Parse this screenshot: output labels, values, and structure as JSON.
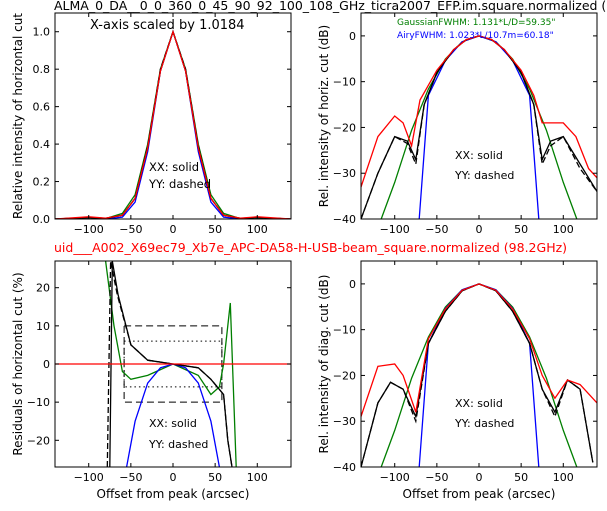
{
  "figure": {
    "title_top": "ALMA_0_DA__0_0_360_0_45_90_92_100_108_GHz_ticra2007_EFP.im.square.normalized (",
    "title_middle": "uid___A002_X69ec79_Xb7e_APC-DA58-H-USB-beam_square.normalized (98.2GHz)",
    "title_middle_color": "#ff0000"
  },
  "chart_data": [
    {
      "type": "line",
      "panel": "top-left",
      "xlabel": "",
      "ylabel": "Relative intensity of horizontal cut",
      "xlim": [
        -140,
        140
      ],
      "ylim": [
        0,
        1.1
      ],
      "xticks": [
        -100,
        -50,
        0,
        50,
        100
      ],
      "yticks": [
        0.0,
        0.2,
        0.4,
        0.6,
        0.8,
        1.0
      ],
      "annotations": [
        "X-axis scaled by 1.0184",
        "XX: solid",
        "YY: dashed"
      ],
      "series": [
        {
          "style": "model gaussian",
          "color": "#007f00",
          "x": [
            -140,
            -80,
            -60,
            -45,
            -30,
            -15,
            0,
            15,
            30,
            45,
            60,
            80,
            140
          ],
          "y": [
            0,
            0.002,
            0.03,
            0.13,
            0.4,
            0.8,
            1.0,
            0.8,
            0.4,
            0.13,
            0.03,
            0.002,
            0
          ]
        },
        {
          "style": "model airy",
          "color": "#0000ff",
          "x": [
            -140,
            -80,
            -60,
            -45,
            -30,
            -15,
            0,
            15,
            30,
            45,
            60,
            80,
            140
          ],
          "y": [
            0,
            0,
            0.01,
            0.09,
            0.36,
            0.79,
            1.0,
            0.79,
            0.36,
            0.09,
            0.01,
            0,
            0
          ]
        },
        {
          "style": "XX solid",
          "color": "#000000",
          "x": [
            -140,
            -100,
            -80,
            -60,
            -45,
            -30,
            -15,
            0,
            15,
            30,
            45,
            60,
            80,
            100,
            140
          ],
          "y": [
            0,
            0.008,
            0.004,
            0.02,
            0.11,
            0.38,
            0.79,
            1.0,
            0.79,
            0.38,
            0.11,
            0.02,
            0.004,
            0.008,
            0
          ]
        },
        {
          "style": "YY dashed",
          "color": "#000000",
          "x": [
            -140,
            -100,
            -80,
            -60,
            -45,
            -30,
            -15,
            0,
            15,
            30,
            45,
            60,
            80,
            100,
            140
          ],
          "y": [
            0,
            0.008,
            0.004,
            0.02,
            0.11,
            0.39,
            0.8,
            1.0,
            0.8,
            0.39,
            0.11,
            0.02,
            0.004,
            0.008,
            0
          ]
        },
        {
          "style": "measured red",
          "color": "#ff0000",
          "x": [
            -140,
            -100,
            -80,
            -60,
            -45,
            -30,
            -15,
            0,
            15,
            30,
            45,
            60,
            80,
            100,
            140
          ],
          "y": [
            0,
            0.012,
            0.005,
            0.02,
            0.11,
            0.38,
            0.79,
            1.0,
            0.79,
            0.38,
            0.11,
            0.02,
            0.005,
            0.012,
            0
          ]
        }
      ]
    },
    {
      "type": "line",
      "panel": "top-right",
      "xlabel": "",
      "ylabel": "Rel. intensity of horiz. cut (dB)",
      "xlim": [
        -140,
        140
      ],
      "ylim": [
        -40,
        5
      ],
      "xticks": [
        -100,
        -50,
        0,
        50,
        100
      ],
      "yticks": [
        0,
        -10,
        -20,
        -30,
        -40
      ],
      "annotations": [
        "XX: solid",
        "YY: dashed"
      ],
      "legend": [
        {
          "text": "GaussianFWHM: 1.131*L/D=59.35\"",
          "color": "#007f00"
        },
        {
          "text": "AiryFWHM: 1.023*L/10.7m=60.18\"",
          "color": "#0000ff"
        }
      ],
      "series": [
        {
          "style": "model gaussian",
          "color": "#007f00",
          "x": [
            -116,
            -100,
            -80,
            -60,
            -40,
            -20,
            0,
            20,
            40,
            60,
            80,
            100,
            116
          ],
          "y": [
            -40,
            -32,
            -20.6,
            -11.6,
            -5.1,
            -1.3,
            0,
            -1.3,
            -5.1,
            -11.6,
            -20.6,
            -32,
            -40
          ]
        },
        {
          "style": "model airy",
          "color": "#0000ff",
          "x": [
            -71,
            -60,
            -40,
            -20,
            0,
            20,
            40,
            60,
            71
          ],
          "y": [
            -40,
            -13,
            -5.4,
            -1.3,
            0,
            -1.3,
            -5.4,
            -13,
            -40
          ]
        },
        {
          "style": "XX solid",
          "color": "#000000",
          "x": [
            -140,
            -120,
            -100,
            -85,
            -75,
            -65,
            -50,
            -30,
            -15,
            0,
            15,
            30,
            50,
            65,
            75,
            85,
            100,
            120,
            140
          ],
          "y": [
            -40,
            -30,
            -22,
            -23,
            -27,
            -15,
            -8,
            -3,
            -0.8,
            0,
            -0.8,
            -3,
            -8,
            -15,
            -27,
            -23,
            -22,
            -28,
            -34
          ]
        },
        {
          "style": "YY dashed",
          "color": "#000000",
          "x": [
            -140,
            -120,
            -100,
            -85,
            -75,
            -65,
            -50,
            -30,
            -15,
            0,
            15,
            30,
            50,
            65,
            75,
            85,
            100,
            120,
            140
          ],
          "y": [
            -40,
            -30,
            -22,
            -23.5,
            -28,
            -15,
            -8,
            -3,
            -0.8,
            0,
            -0.8,
            -3,
            -8,
            -15,
            -28,
            -24,
            -22,
            -29,
            -34
          ]
        },
        {
          "style": "measured red",
          "color": "#ff0000",
          "x": [
            -140,
            -120,
            -100,
            -90,
            -80,
            -70,
            -50,
            -30,
            -15,
            0,
            15,
            30,
            50,
            65,
            75,
            85,
            100,
            115,
            130,
            140
          ],
          "y": [
            -33,
            -22,
            -17.5,
            -19,
            -24,
            -14,
            -7.5,
            -3,
            -0.8,
            0,
            -0.8,
            -3,
            -7.5,
            -13,
            -19,
            -19,
            -19,
            -22,
            -29,
            -31
          ]
        }
      ]
    },
    {
      "type": "line",
      "panel": "bottom-left",
      "xlabel": "Offset from peak (arcsec)",
      "ylabel": "Residuals of horizontal cut (%)",
      "xlim": [
        -140,
        140
      ],
      "ylim": [
        -27,
        27
      ],
      "xticks": [
        -100,
        -50,
        0,
        50,
        100
      ],
      "yticks": [
        20,
        10,
        0,
        -10,
        -20
      ],
      "annotations": [
        "XX: solid",
        "YY: dashed"
      ],
      "reference_lines": {
        "dashed_box": [
          -58,
          58,
          -10,
          10
        ],
        "dotted_box": [
          -58,
          58,
          -6,
          6
        ]
      },
      "series": [
        {
          "style": "gaussian residual",
          "color": "#007f00",
          "x": [
            -80,
            -70,
            -60,
            -50,
            -30,
            0,
            30,
            45,
            55,
            60,
            68,
            75
          ],
          "y": [
            27,
            10,
            -2,
            -4,
            -3,
            0,
            -3,
            -8,
            -6,
            0,
            16,
            -27
          ]
        },
        {
          "style": "airy residual",
          "color": "#0000ff",
          "x": [
            -55,
            -45,
            -30,
            -15,
            0,
            15,
            30,
            45,
            55
          ],
          "y": [
            -27,
            -15,
            -5,
            -1,
            0,
            -1,
            -5,
            -15,
            -27
          ]
        },
        {
          "style": "XX solid",
          "color": "#000000",
          "x": [
            -75,
            -72,
            -65,
            -50,
            -30,
            0,
            30,
            45,
            60,
            65,
            70
          ],
          "y": [
            -27,
            27,
            18,
            5,
            1,
            0,
            -1,
            -4,
            -8,
            -20,
            -27
          ]
        },
        {
          "style": "YY dashed",
          "color": "#000000",
          "x": [
            -78,
            -74,
            -66,
            -50,
            -30,
            0,
            30,
            45,
            60,
            65,
            70
          ],
          "y": [
            -27,
            27,
            18,
            5,
            1,
            0,
            -1,
            -4,
            -8,
            -20,
            -27
          ]
        },
        {
          "style": "zero",
          "color": "#ff0000",
          "x": [
            -140,
            140
          ],
          "y": [
            0,
            0
          ]
        }
      ]
    },
    {
      "type": "line",
      "panel": "bottom-right",
      "xlabel": "Offset from peak (arcsec)",
      "ylabel": "Rel. intensity of diag. cut (dB)",
      "xlim": [
        -140,
        140
      ],
      "ylim": [
        -40,
        5
      ],
      "xticks": [
        -100,
        -50,
        0,
        50,
        100
      ],
      "yticks": [
        0,
        -10,
        -20,
        -30,
        -40
      ],
      "annotations": [
        "XX: solid",
        "YY: dashed"
      ],
      "series": [
        {
          "style": "model gaussian",
          "color": "#007f00",
          "x": [
            -116,
            -100,
            -80,
            -60,
            -40,
            -20,
            0,
            20,
            40,
            60,
            80,
            100,
            116
          ],
          "y": [
            -40,
            -32,
            -20.6,
            -11.6,
            -5.1,
            -1.3,
            0,
            -1.3,
            -5.1,
            -11.6,
            -20.6,
            -32,
            -40
          ]
        },
        {
          "style": "model airy",
          "color": "#0000ff",
          "x": [
            -71,
            -60,
            -40,
            -20,
            0,
            20,
            40,
            60,
            71
          ],
          "y": [
            -40,
            -13,
            -5.4,
            -1.3,
            0,
            -1.3,
            -5.4,
            -13,
            -40
          ]
        },
        {
          "style": "XX solid",
          "color": "#000000",
          "x": [
            -140,
            -120,
            -105,
            -90,
            -75,
            -60,
            -40,
            -20,
            0,
            20,
            40,
            60,
            75,
            90,
            105,
            120,
            135
          ],
          "y": [
            -40,
            -26,
            -21.5,
            -23,
            -29,
            -13,
            -6,
            -1.5,
            0,
            -1.5,
            -6,
            -13,
            -23,
            -28,
            -21,
            -23,
            -39
          ]
        },
        {
          "style": "YY dashed",
          "color": "#000000",
          "x": [
            -140,
            -120,
            -105,
            -90,
            -75,
            -60,
            -40,
            -20,
            0,
            20,
            40,
            60,
            75,
            90,
            105,
            120,
            135
          ],
          "y": [
            -40,
            -26,
            -21.5,
            -23,
            -30,
            -13,
            -6,
            -1.5,
            0,
            -1.5,
            -6,
            -13,
            -23,
            -29,
            -21,
            -23,
            -39
          ]
        },
        {
          "style": "measured red",
          "color": "#ff0000",
          "x": [
            -140,
            -120,
            -100,
            -90,
            -75,
            -60,
            -40,
            -20,
            0,
            20,
            40,
            60,
            75,
            90,
            105,
            120,
            140
          ],
          "y": [
            -29,
            -18,
            -17.5,
            -20,
            -28,
            -12,
            -5.5,
            -1.4,
            0,
            -1.4,
            -5.5,
            -12,
            -20,
            -25,
            -21,
            -22,
            -26
          ]
        }
      ]
    }
  ]
}
